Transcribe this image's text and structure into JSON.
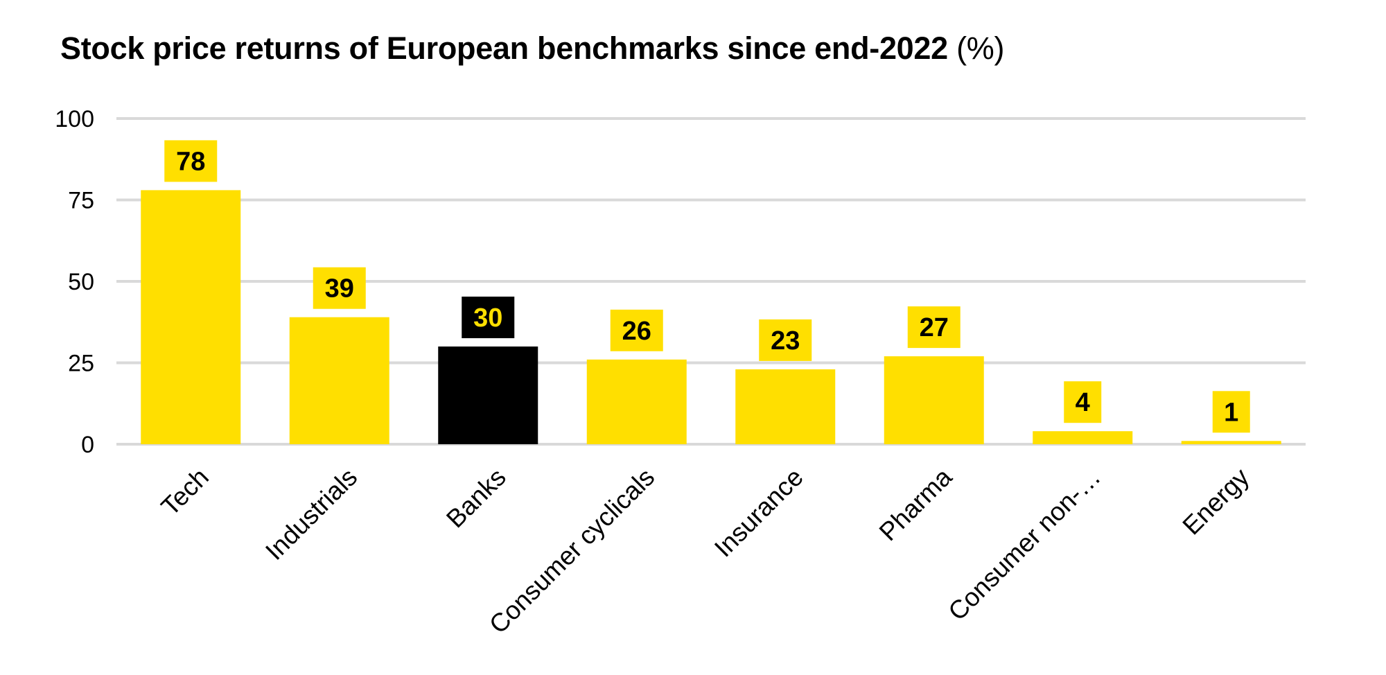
{
  "chart_data": {
    "type": "bar",
    "title": "Stock price returns of European benchmarks since end-2022",
    "title_unit": "(%)",
    "xlabel": "",
    "ylabel": "",
    "categories": [
      "Tech",
      "Industrials",
      "Banks",
      "Consumer cyclicals",
      "Insurance",
      "Pharma",
      "Consumer non-…",
      "Energy"
    ],
    "values": [
      78,
      39,
      30,
      26,
      23,
      27,
      4,
      1
    ],
    "data_labels": [
      "78",
      "39",
      "30",
      "26",
      "23",
      "27",
      "4",
      "1"
    ],
    "highlight_category": "Banks",
    "ylim": [
      0,
      100
    ],
    "yticks": [
      "0",
      "25",
      "50",
      "75",
      "100"
    ],
    "grid": true,
    "legend": "none",
    "colors": {
      "bar": "#FFDF00",
      "highlight_bar": "#000000",
      "label_box": "#FFDF00",
      "highlight_label_box": "#000000",
      "label_text": "#000000",
      "highlight_label_text": "#FFDF00",
      "gridline": "#D9D9D9",
      "text": "#000000"
    }
  }
}
